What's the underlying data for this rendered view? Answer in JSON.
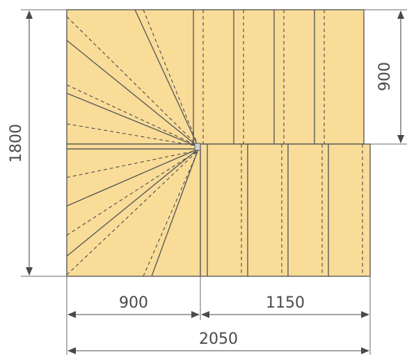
{
  "diagram": {
    "colors": {
      "stair_fill": "#F9DC98",
      "stroke": "#5A5A5A",
      "dim": "#4A4A4A"
    },
    "dimensions": {
      "total_height": "1800",
      "upper_flight_height": "900",
      "winder_width": "900",
      "lower_flight_length": "1150",
      "total_length": "2050"
    }
  }
}
